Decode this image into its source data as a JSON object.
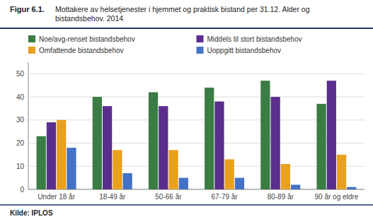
{
  "chart_data": {
    "type": "bar",
    "title": "Figur 6.1.",
    "subtitle": "Mottakere av helsetjenester i hjemmet og praktisk bistand per 31.12. Alder og\nbistandsbehov. 2014",
    "annotations": [
      "Kilde: IPLOS"
    ],
    "categories": [
      "Under 18 år",
      "18-49 år",
      "50-66 år",
      "67-79 år",
      "80-89 år",
      "90 år og eldre"
    ],
    "series": [
      {
        "name": "Noe/avg-renset bistandsbehov",
        "color": "#3a7d44",
        "values": [
          23,
          40,
          42,
          44,
          47,
          37
        ]
      },
      {
        "name": "Middels til stort bistandsbehov",
        "color": "#5b2d8e",
        "values": [
          29,
          36,
          36,
          38,
          40,
          47
        ]
      },
      {
        "name": "Omfattende bistandsbehov",
        "color": "#e8a020",
        "values": [
          30,
          17,
          17,
          13,
          11,
          15
        ]
      },
      {
        "name": "Uoppgitt bistandsbehov",
        "color": "#4472c4",
        "values": [
          18,
          7,
          5,
          5,
          2,
          1
        ]
      }
    ],
    "ylim": [
      0,
      55
    ],
    "yticks": [
      0,
      10,
      20,
      30,
      40,
      50
    ],
    "grid": true,
    "legend": "top"
  }
}
